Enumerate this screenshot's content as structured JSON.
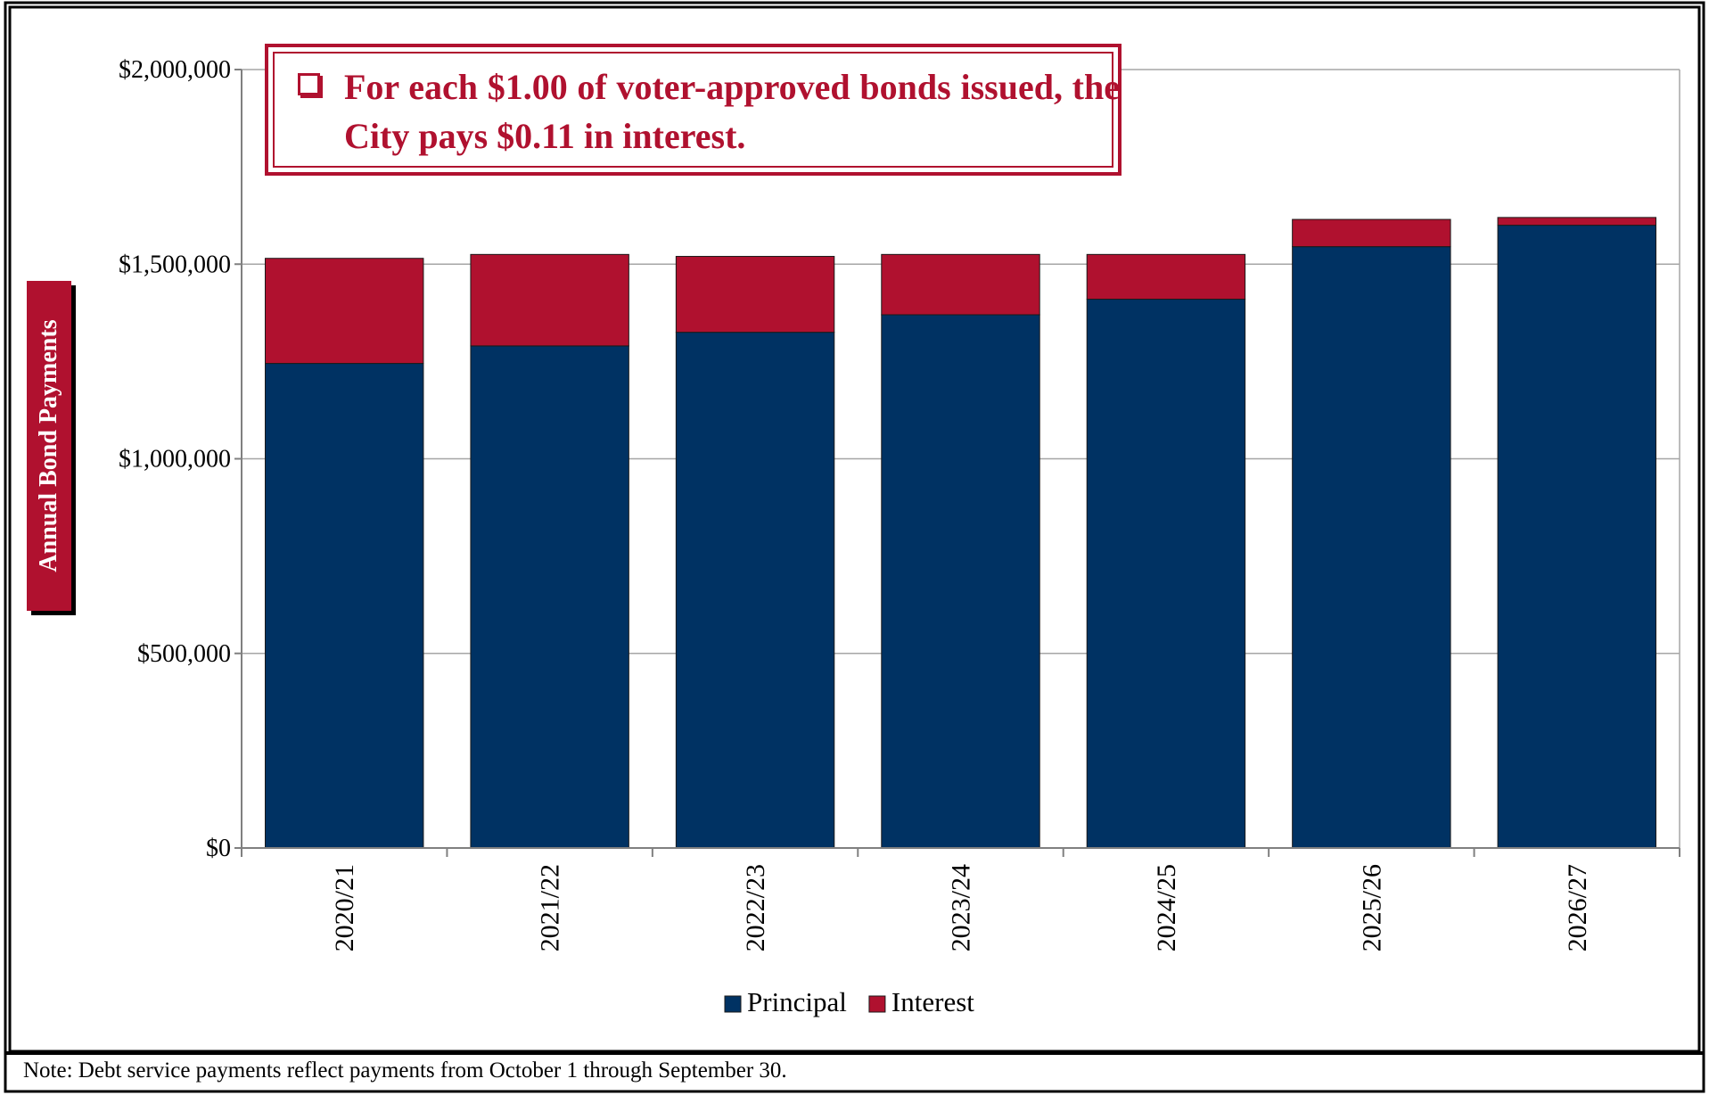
{
  "callout": {
    "text": "For each $1.00 of voter-approved bonds issued, the City pays $0.11 in interest."
  },
  "note": "Note: Debt service payments reflect payments from October 1 through September 30.",
  "colors": {
    "principal": "#003263",
    "interest": "#b0112f",
    "frame": "#000000",
    "grid": "#a6a6a6"
  },
  "chart_data": {
    "type": "bar",
    "stacked": true,
    "title": "",
    "xlabel": "",
    "ylabel": "Annual Bond Payments",
    "ylim": [
      0,
      2000000
    ],
    "yticks": [
      0,
      500000,
      1000000,
      1500000,
      2000000
    ],
    "ytick_labels": [
      "$0",
      "$500,000",
      "$1,000,000",
      "$1,500,000",
      "$2,000,000"
    ],
    "grid": true,
    "legend_position": "bottom",
    "categories": [
      "2020/21",
      "2021/22",
      "2022/23",
      "2023/24",
      "2024/25",
      "2025/26",
      "2026/27"
    ],
    "series": [
      {
        "name": "Principal",
        "color": "#003263",
        "values": [
          1245000,
          1290000,
          1325000,
          1370000,
          1410000,
          1545000,
          1600000
        ]
      },
      {
        "name": "Interest",
        "color": "#b0112f",
        "values": [
          270000,
          235000,
          195000,
          155000,
          115000,
          70000,
          20000
        ]
      }
    ]
  }
}
